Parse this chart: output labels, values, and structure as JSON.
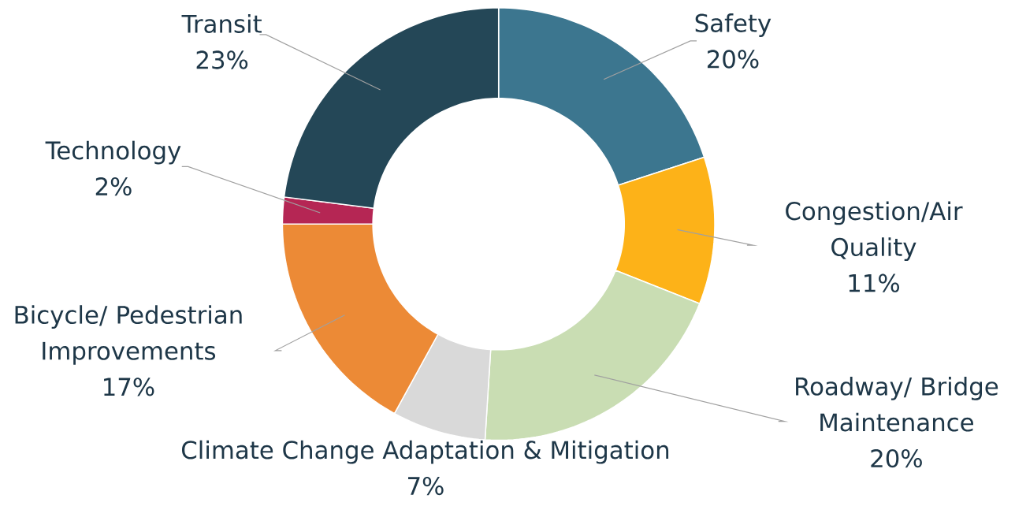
{
  "chart_data": {
    "type": "donut",
    "categories": [
      "Safety",
      "Congestion/Air Quality",
      "Roadway/ Bridge Maintenance",
      "Climate Change Adaptation & Mitigation",
      "Bicycle/ Pedestrian Improvements",
      "Technology",
      "Transit"
    ],
    "values": [
      20,
      11,
      20,
      7,
      17,
      2,
      23
    ],
    "value_labels": [
      "20%",
      "11%",
      "20%",
      "7%",
      "17%",
      "2%",
      "23%"
    ],
    "colors": [
      "#3c768f",
      "#fdb218",
      "#c9ddb3",
      "#d9d9d9",
      "#ec8a36",
      "#b52654",
      "#244757"
    ]
  }
}
